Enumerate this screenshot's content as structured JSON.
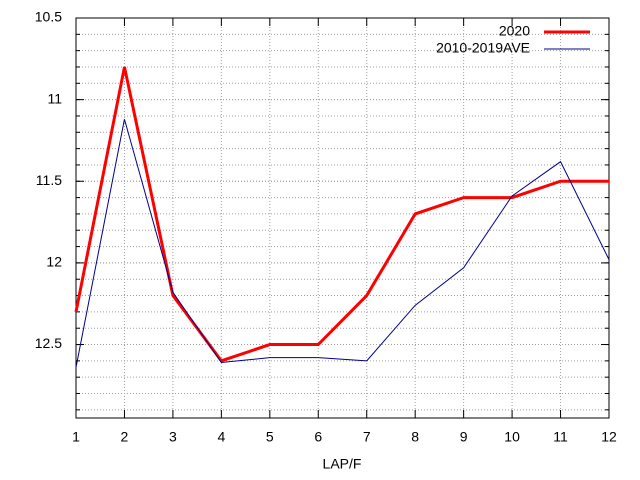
{
  "chart_data": {
    "type": "line",
    "x_label": "LAP/F",
    "x": [
      1,
      2,
      3,
      4,
      5,
      6,
      7,
      8,
      9,
      10,
      11,
      12
    ],
    "series": [
      {
        "name": "2020",
        "color": "#ff0000",
        "line_width": 3,
        "values": [
          12.3,
          10.8,
          12.2,
          12.6,
          12.5,
          12.5,
          12.2,
          11.7,
          11.6,
          11.6,
          11.5,
          11.5
        ]
      },
      {
        "name": "2010-2019AVE",
        "color": "#00008b",
        "line_width": 1,
        "values": [
          12.64,
          11.12,
          12.18,
          12.61,
          12.58,
          12.58,
          12.6,
          12.26,
          12.03,
          11.59,
          11.38,
          11.98
        ]
      }
    ],
    "xlim": [
      1,
      12
    ],
    "xticks": [
      1,
      2,
      3,
      4,
      5,
      6,
      7,
      8,
      9,
      10,
      11,
      12
    ],
    "ylim": [
      10.5,
      12.95
    ],
    "yticks": [
      10.5,
      11,
      11.5,
      12,
      12.5
    ],
    "y_reversed": true,
    "grid": true,
    "legend": "top-right"
  }
}
